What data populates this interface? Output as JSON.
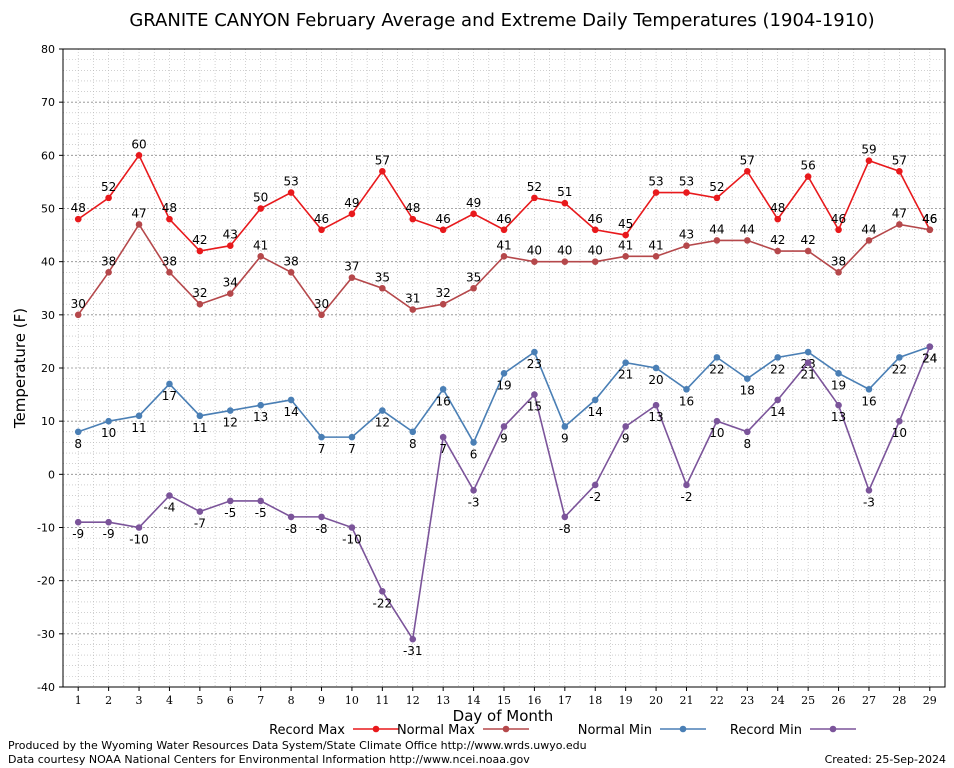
{
  "chart_data": {
    "type": "line",
    "title": "GRANITE CANYON February Average and Extreme Daily Temperatures (1904-1910)",
    "xlabel": "Day of Month",
    "ylabel": "Temperature (F)",
    "ylim": [
      -40,
      80
    ],
    "yticks": [
      80,
      70,
      60,
      50,
      40,
      30,
      20,
      10,
      0,
      -10,
      -20,
      -30,
      -40
    ],
    "x": [
      1,
      2,
      3,
      4,
      5,
      6,
      7,
      8,
      9,
      10,
      11,
      12,
      13,
      14,
      15,
      16,
      17,
      18,
      19,
      20,
      21,
      22,
      23,
      24,
      25,
      26,
      27,
      28,
      29
    ],
    "grid": true,
    "legend_placement": "bottom",
    "series": [
      {
        "name": "Record Max",
        "color": "#e8191c",
        "label_side": "above",
        "values": [
          48,
          52,
          60,
          48,
          42,
          43,
          50,
          53,
          46,
          49,
          57,
          48,
          46,
          49,
          46,
          52,
          51,
          46,
          45,
          53,
          53,
          52,
          57,
          48,
          56,
          46,
          59,
          57,
          46
        ]
      },
      {
        "name": "Normal Max",
        "color": "#b5484b",
        "label_side": "above",
        "values": [
          30,
          38,
          47,
          38,
          32,
          34,
          41,
          38,
          30,
          37,
          35,
          31,
          32,
          35,
          41,
          40,
          40,
          40,
          41,
          41,
          43,
          44,
          44,
          42,
          42,
          38,
          44,
          47,
          46
        ]
      },
      {
        "name": "Normal Min",
        "color": "#4a7fb5",
        "label_side": "below",
        "values": [
          8,
          10,
          11,
          17,
          11,
          12,
          13,
          14,
          7,
          7,
          12,
          8,
          16,
          6,
          19,
          23,
          9,
          14,
          21,
          20,
          16,
          22,
          18,
          22,
          23,
          19,
          16,
          22,
          24
        ]
      },
      {
        "name": "Record Min",
        "color": "#7b549a",
        "label_side": "below",
        "values": [
          -9,
          -9,
          -10,
          -4,
          -7,
          -5,
          -5,
          -8,
          -8,
          -10,
          -22,
          -31,
          7,
          -3,
          9,
          15,
          -8,
          -2,
          9,
          13,
          -2,
          10,
          8,
          14,
          21,
          13,
          -3,
          10,
          24
        ]
      }
    ]
  },
  "footer": {
    "line1": "Produced by the Wyoming Water Resources Data System/State Climate Office http://www.wrds.uwyo.edu",
    "line2": "Data courtesy NOAA National Centers for Environmental Information http://www.ncei.noaa.gov",
    "created": "Created:  25-Sep-2024"
  }
}
